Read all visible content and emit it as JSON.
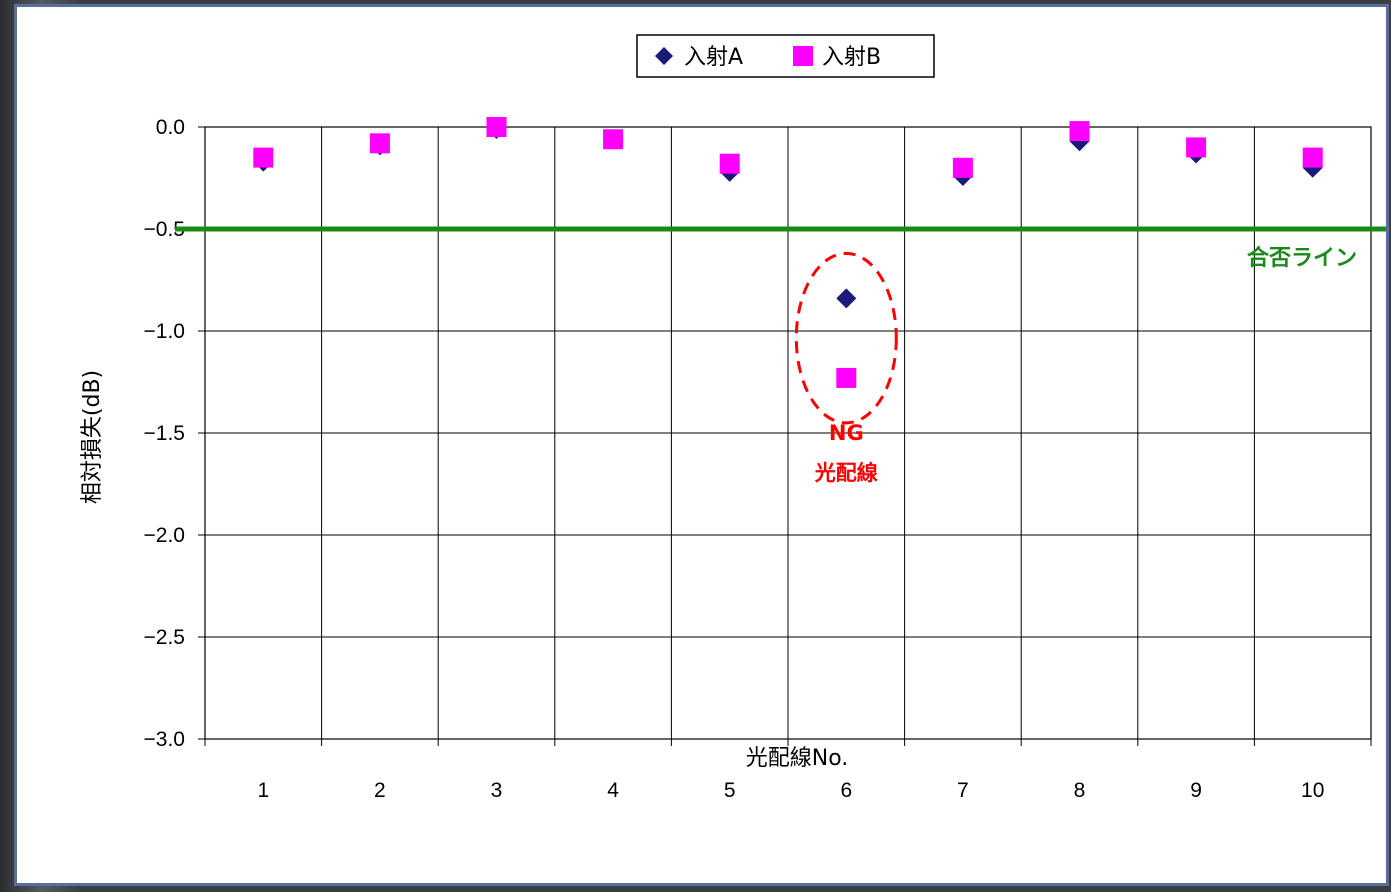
{
  "chart_data": {
    "type": "scatter",
    "categories": [
      "1",
      "2",
      "3",
      "4",
      "5",
      "6",
      "7",
      "8",
      "9",
      "10"
    ],
    "series": [
      {
        "name": "入射A",
        "marker": "diamond",
        "color": "#1a1a7a",
        "values": [
          -0.17,
          -0.09,
          -0.01,
          -0.06,
          -0.22,
          -0.84,
          -0.24,
          -0.07,
          -0.13,
          -0.2
        ]
      },
      {
        "name": "入射B",
        "marker": "square",
        "color": "#ff00ff",
        "values": [
          -0.15,
          -0.08,
          0.0,
          -0.06,
          -0.18,
          -1.23,
          -0.2,
          -0.02,
          -0.1,
          -0.15
        ]
      }
    ],
    "xlabel": "光配線No.",
    "ylabel": "相対損失(dB)",
    "ylim": [
      -3.0,
      0.0
    ],
    "yticks": [
      "0.0",
      "−0.5",
      "−1.0",
      "−1.5",
      "−2.0",
      "−2.5",
      "−3.0"
    ],
    "grid": true,
    "legend_position": "top-center",
    "threshold": {
      "value": -0.5,
      "label": "合否ライン",
      "color": "#1a8a1a"
    },
    "annotation": {
      "category": "6",
      "line1": "NG",
      "line2": "光配線",
      "color": "#ff0000"
    }
  }
}
